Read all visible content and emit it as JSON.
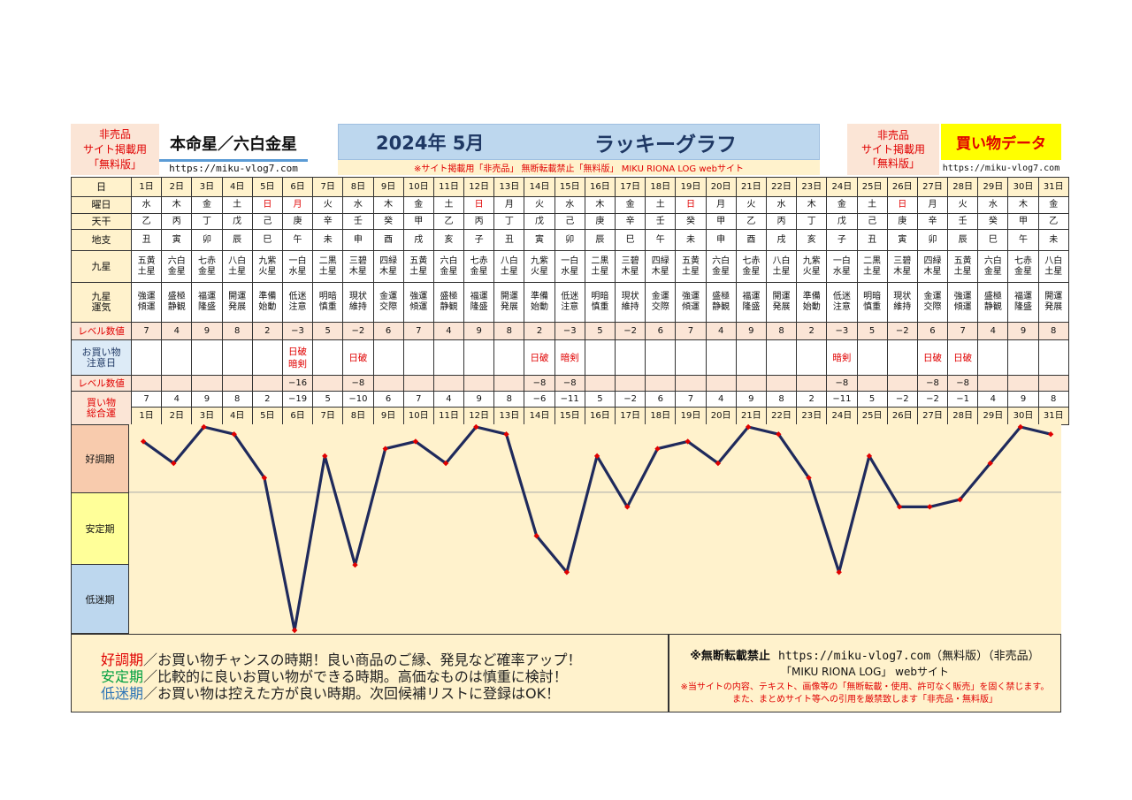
{
  "header": {
    "left_notice": [
      "非売品",
      "サイト掲載用",
      "「無料版」"
    ],
    "honmei": "本命星／六白金星",
    "url": "https://miku-vlog7.com",
    "year_month": "2024年 5月",
    "title": "ラッキーグラフ",
    "notice": "※サイト掲載用「非売品」 無断転載禁止「無料版」 MIKU RIONA LOG webサイト",
    "right_notice": [
      "非売品",
      "サイト掲載用",
      "「無料版」"
    ],
    "kaimono": "買い物データ",
    "url2": "https://miku-vlog7.com"
  },
  "row_labels": {
    "day": "日",
    "weekday": "曜日",
    "tenkan": "天干",
    "chishi": "地支",
    "kyusei": "九星",
    "unki": "九星\n運気",
    "level": "レベル数値",
    "shopping_caution": "お買い物\n注意日",
    "level2": "レベル数値",
    "total": "買い物\n総合運"
  },
  "days": [
    "1日",
    "2日",
    "3日",
    "4日",
    "5日",
    "6日",
    "7日",
    "8日",
    "9日",
    "10日",
    "11日",
    "12日",
    "13日",
    "14日",
    "15日",
    "16日",
    "17日",
    "18日",
    "19日",
    "20日",
    "21日",
    "22日",
    "23日",
    "24日",
    "25日",
    "26日",
    "27日",
    "28日",
    "29日",
    "30日",
    "31日"
  ],
  "weekdays": [
    "水",
    "木",
    "金",
    "土",
    "日",
    "月",
    "火",
    "水",
    "木",
    "金",
    "土",
    "日",
    "月",
    "火",
    "水",
    "木",
    "金",
    "土",
    "日",
    "月",
    "火",
    "水",
    "木",
    "金",
    "土",
    "日",
    "月",
    "火",
    "水",
    "木",
    "金"
  ],
  "holiday_flags": [
    false,
    false,
    false,
    false,
    true,
    true,
    false,
    false,
    false,
    false,
    false,
    true,
    false,
    false,
    false,
    false,
    false,
    false,
    true,
    false,
    false,
    false,
    false,
    false,
    false,
    true,
    false,
    false,
    false,
    false,
    false
  ],
  "tenkan": [
    "乙",
    "丙",
    "丁",
    "戊",
    "己",
    "庚",
    "辛",
    "壬",
    "癸",
    "甲",
    "乙",
    "丙",
    "丁",
    "戊",
    "己",
    "庚",
    "辛",
    "壬",
    "癸",
    "甲",
    "乙",
    "丙",
    "丁",
    "戊",
    "己",
    "庚",
    "辛",
    "壬",
    "癸",
    "甲",
    "乙"
  ],
  "chishi": [
    "丑",
    "寅",
    "卯",
    "辰",
    "巳",
    "午",
    "未",
    "申",
    "酉",
    "戌",
    "亥",
    "子",
    "丑",
    "寅",
    "卯",
    "辰",
    "巳",
    "午",
    "未",
    "申",
    "酉",
    "戌",
    "亥",
    "子",
    "丑",
    "寅",
    "卯",
    "辰",
    "巳",
    "午",
    "未"
  ],
  "kyusei": [
    "五黄\n土星",
    "六白\n金星",
    "七赤\n金星",
    "八白\n土星",
    "九紫\n火星",
    "一白\n水星",
    "二黒\n土星",
    "三碧\n木星",
    "四緑\n木星",
    "五黄\n土星",
    "六白\n金星",
    "七赤\n金星",
    "八白\n土星",
    "九紫\n火星",
    "一白\n水星",
    "二黒\n土星",
    "三碧\n木星",
    "四緑\n木星",
    "五黄\n土星",
    "六白\n金星",
    "七赤\n金星",
    "八白\n土星",
    "九紫\n火星",
    "一白\n水星",
    "二黒\n土星",
    "三碧\n木星",
    "四緑\n木星",
    "五黄\n土星",
    "六白\n金星",
    "七赤\n金星",
    "八白\n土星"
  ],
  "unki": [
    "強運\n傾運",
    "盛極\n静観",
    "福運\n隆盛",
    "開運\n発展",
    "準備\n始動",
    "低迷\n注意",
    "明暗\n慎重",
    "現状\n維持",
    "金運\n交際",
    "強運\n傾運",
    "盛極\n静観",
    "福運\n隆盛",
    "開運\n発展",
    "準備\n始動",
    "低迷\n注意",
    "明暗\n慎重",
    "現状\n維持",
    "金運\n交際",
    "強運\n傾運",
    "盛極\n静観",
    "福運\n隆盛",
    "開運\n発展",
    "準備\n始動",
    "低迷\n注意",
    "明暗\n慎重",
    "現状\n維持",
    "金運\n交際",
    "強運\n傾運",
    "盛極\n静観",
    "福運\n隆盛",
    "開運\n発展"
  ],
  "level": [
    "7",
    "4",
    "9",
    "8",
    "2",
    "−3",
    "5",
    "−2",
    "6",
    "7",
    "4",
    "9",
    "8",
    "2",
    "−3",
    "5",
    "−2",
    "6",
    "7",
    "4",
    "9",
    "8",
    "2",
    "−3",
    "5",
    "−2",
    "6",
    "7",
    "4",
    "9",
    "8"
  ],
  "caution": [
    "",
    "",
    "",
    "",
    "",
    "日破\n暗剣",
    "",
    "日破",
    "",
    "",
    "",
    "",
    "",
    "日破",
    "暗剣",
    "",
    "",
    "",
    "",
    "",
    "",
    "",
    "",
    "暗剣",
    "",
    "",
    "日破",
    "日破",
    "",
    "",
    ""
  ],
  "level2": [
    "",
    "",
    "",
    "",
    "",
    "−16",
    "",
    "−8",
    "",
    "",
    "",
    "",
    "",
    "−8",
    "−8",
    "",
    "",
    "",
    "",
    "",
    "",
    "",
    "",
    "−8",
    "",
    "",
    "−8",
    "−8",
    "",
    "",
    ""
  ],
  "total": [
    "7",
    "4",
    "9",
    "8",
    "2",
    "−19",
    "5",
    "−10",
    "6",
    "7",
    "4",
    "9",
    "8",
    "−6",
    "−11",
    "5",
    "−2",
    "6",
    "7",
    "4",
    "9",
    "8",
    "2",
    "−11",
    "5",
    "−2",
    "−2",
    "−1",
    "4",
    "9",
    "8"
  ],
  "zones": {
    "good": "好調期",
    "stable": "安定期",
    "low": "低迷期"
  },
  "chart_data": {
    "type": "line",
    "x": [
      "1日",
      "2日",
      "3日",
      "4日",
      "5日",
      "6日",
      "7日",
      "8日",
      "9日",
      "10日",
      "11日",
      "12日",
      "13日",
      "14日",
      "15日",
      "16日",
      "17日",
      "18日",
      "19日",
      "20日",
      "21日",
      "22日",
      "23日",
      "24日",
      "25日",
      "26日",
      "27日",
      "28日",
      "29日",
      "30日",
      "31日"
    ],
    "series": [
      {
        "values": [
          7,
          4,
          9,
          8,
          2,
          -19,
          5,
          -10,
          6,
          7,
          4,
          9,
          8,
          -6,
          -11,
          5,
          -2,
          6,
          7,
          4,
          9,
          8,
          2,
          -11,
          5,
          -2,
          -2,
          -1,
          4,
          9,
          8
        ]
      }
    ],
    "ylim": [
      -19,
      9
    ],
    "zone_boundaries": [
      0
    ],
    "line_color": "#1f2a5c",
    "marker_color": "#e00000",
    "background": "#fff2cc"
  },
  "footer": {
    "lines": [
      {
        "term": "好調期",
        "text": "／お買い物チャンスの時期！良い商品のご縁、発見など確率アップ！",
        "color": "#e00000"
      },
      {
        "term": "安定期",
        "text": "／比較的に良いお買い物ができる時期。高価なものは慎重に検討！",
        "color": "#00a040"
      },
      {
        "term": "低迷期",
        "text": "／お買い物は控えた方が良い時期。次回候補リストに登録はOK！",
        "color": "#2e75b6"
      }
    ],
    "right_1": "※無断転載禁止",
    "right_1_url": "https://miku-vlog7.com（無料版）（非売品）",
    "right_2": "「MIKU RIONA LOG」 webサイト",
    "right_3": "※当サイトの内容、テキスト、画像等の「無断転載・使用、許可なく販売」を固く禁じます。",
    "right_4": "また、まとめサイト等への引用を厳禁致します「非売品・無料版」"
  }
}
